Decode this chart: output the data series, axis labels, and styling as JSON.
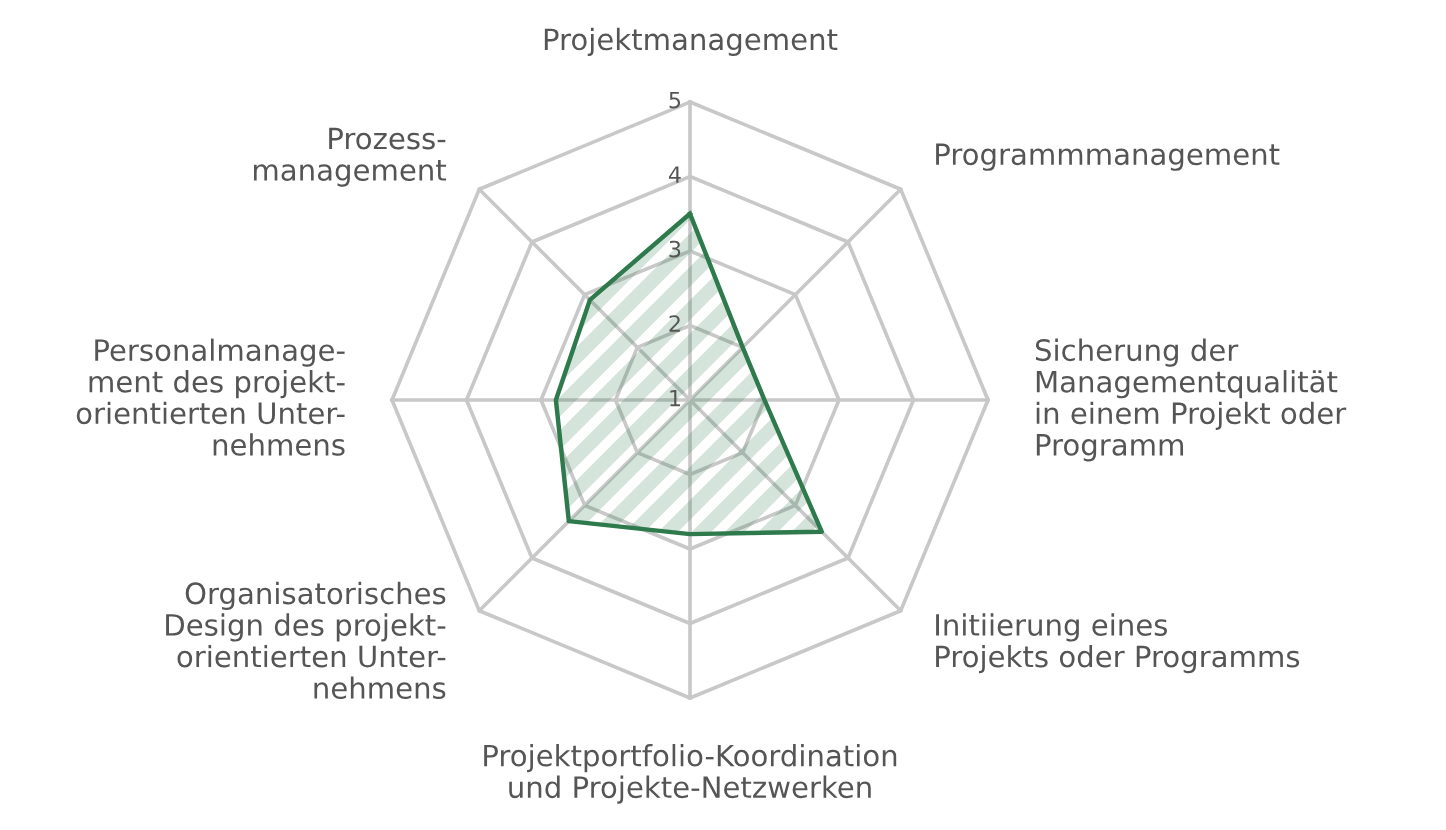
{
  "chart_data": {
    "type": "radar",
    "categories": [
      "Projektmanagement",
      "Programmmanagement",
      "Sicherung der\nManagementqualität\nin einem Projekt oder\nProgramm",
      "Initiierung eines\nProjekts oder Programms",
      "Projektportfolio-Koordination\nund Projekte-Netzwerken",
      "Organisatorisches\nDesign des projekt-\norientierten Unter-\nnehmens",
      "Personalmanage-\nment des projekt-\norientierten Unter-\nnehmens",
      "Prozess-\nmanagement"
    ],
    "series": [
      {
        "color": "#2e7a4c",
        "values": [
          3.5,
          2.0,
          2.0,
          3.5,
          2.8,
          3.3,
          2.8,
          2.9
        ]
      }
    ],
    "ylim": [
      1,
      5
    ],
    "yticks": [
      1,
      2,
      3,
      4,
      5
    ],
    "grid": true
  }
}
